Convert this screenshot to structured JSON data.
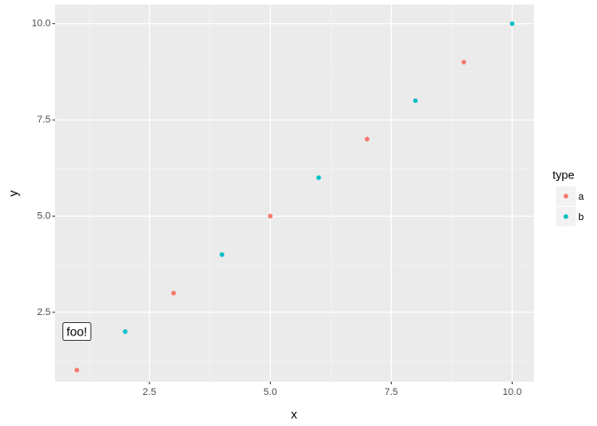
{
  "chart_data": {
    "type": "scatter",
    "x_label": "x",
    "y_label": "y",
    "xlim": [
      0.55,
      10.45
    ],
    "ylim": [
      0.7,
      10.5
    ],
    "xticks": [
      2.5,
      5.0,
      7.5,
      10.0
    ],
    "yticks": [
      2.5,
      5.0,
      7.5,
      10.0
    ],
    "xtick_labels": [
      "2.5",
      "5.0",
      "7.5",
      "10.0"
    ],
    "ytick_labels": [
      "2.5",
      "5.0",
      "7.5",
      "10.0"
    ],
    "grid": true,
    "legend_title": "type",
    "legend_position": "right",
    "series": [
      {
        "name": "a",
        "color": "#F8766D",
        "x": [
          1,
          3,
          5,
          7,
          9
        ],
        "values": [
          1,
          3,
          5,
          7,
          9
        ]
      },
      {
        "name": "b",
        "color": "#00BFC4",
        "x": [
          2,
          4,
          6,
          8,
          10
        ],
        "values": [
          2,
          4,
          6,
          8,
          10
        ]
      }
    ],
    "annotation": {
      "text": "foo!",
      "x": 1,
      "y": 2
    }
  }
}
